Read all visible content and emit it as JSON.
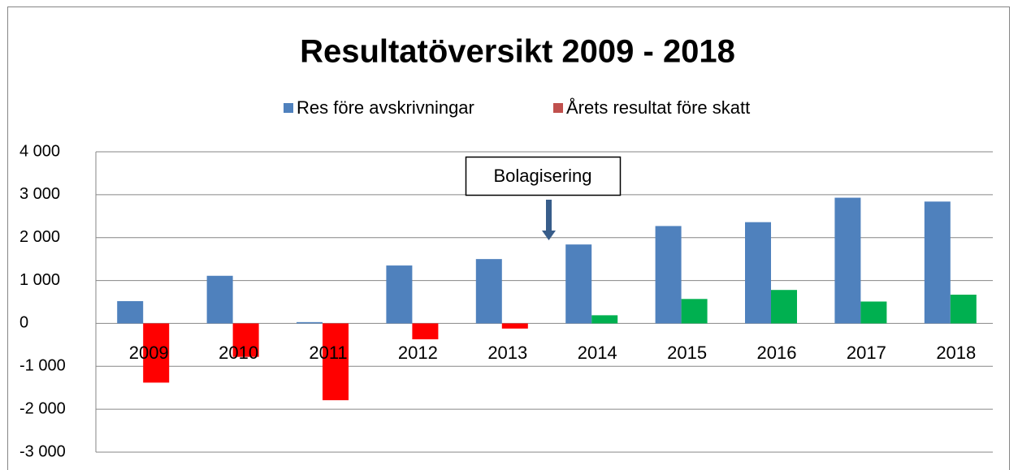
{
  "chart_data": {
    "type": "bar",
    "title": "Resultatöversikt 2009 - 2018",
    "categories": [
      "2009",
      "2010",
      "2011",
      "2012",
      "2013",
      "2014",
      "2015",
      "2016",
      "2017",
      "2018"
    ],
    "series": [
      {
        "name": "Res före avskrivningar",
        "color": "#4f81bd",
        "values": [
          520,
          1110,
          30,
          1350,
          1500,
          1840,
          2270,
          2360,
          2930,
          2840
        ]
      },
      {
        "name": "Årets resultat före skatt",
        "color": "#c0504d",
        "colors": [
          "#ff0000",
          "#ff0000",
          "#ff0000",
          "#ff0000",
          "#ff0000",
          "#00b050",
          "#00b050",
          "#00b050",
          "#00b050",
          "#00b050"
        ],
        "values": [
          -1380,
          -780,
          -1790,
          -370,
          -120,
          190,
          570,
          780,
          510,
          670
        ]
      }
    ],
    "annotation": "Bolagisering",
    "ylim": [
      -3000,
      4000
    ],
    "yticks": [
      {
        "value": -3000,
        "label": "-3 000"
      },
      {
        "value": -2000,
        "label": "-2 000"
      },
      {
        "value": -1000,
        "label": "-1 000"
      },
      0,
      {
        "value": 1000,
        "label": "1 000"
      },
      {
        "value": 2000,
        "label": "2 000"
      },
      {
        "value": 3000,
        "label": "3 000"
      },
      {
        "value": 4000,
        "label": "4 000"
      }
    ],
    "grid": true,
    "legend": "top"
  }
}
